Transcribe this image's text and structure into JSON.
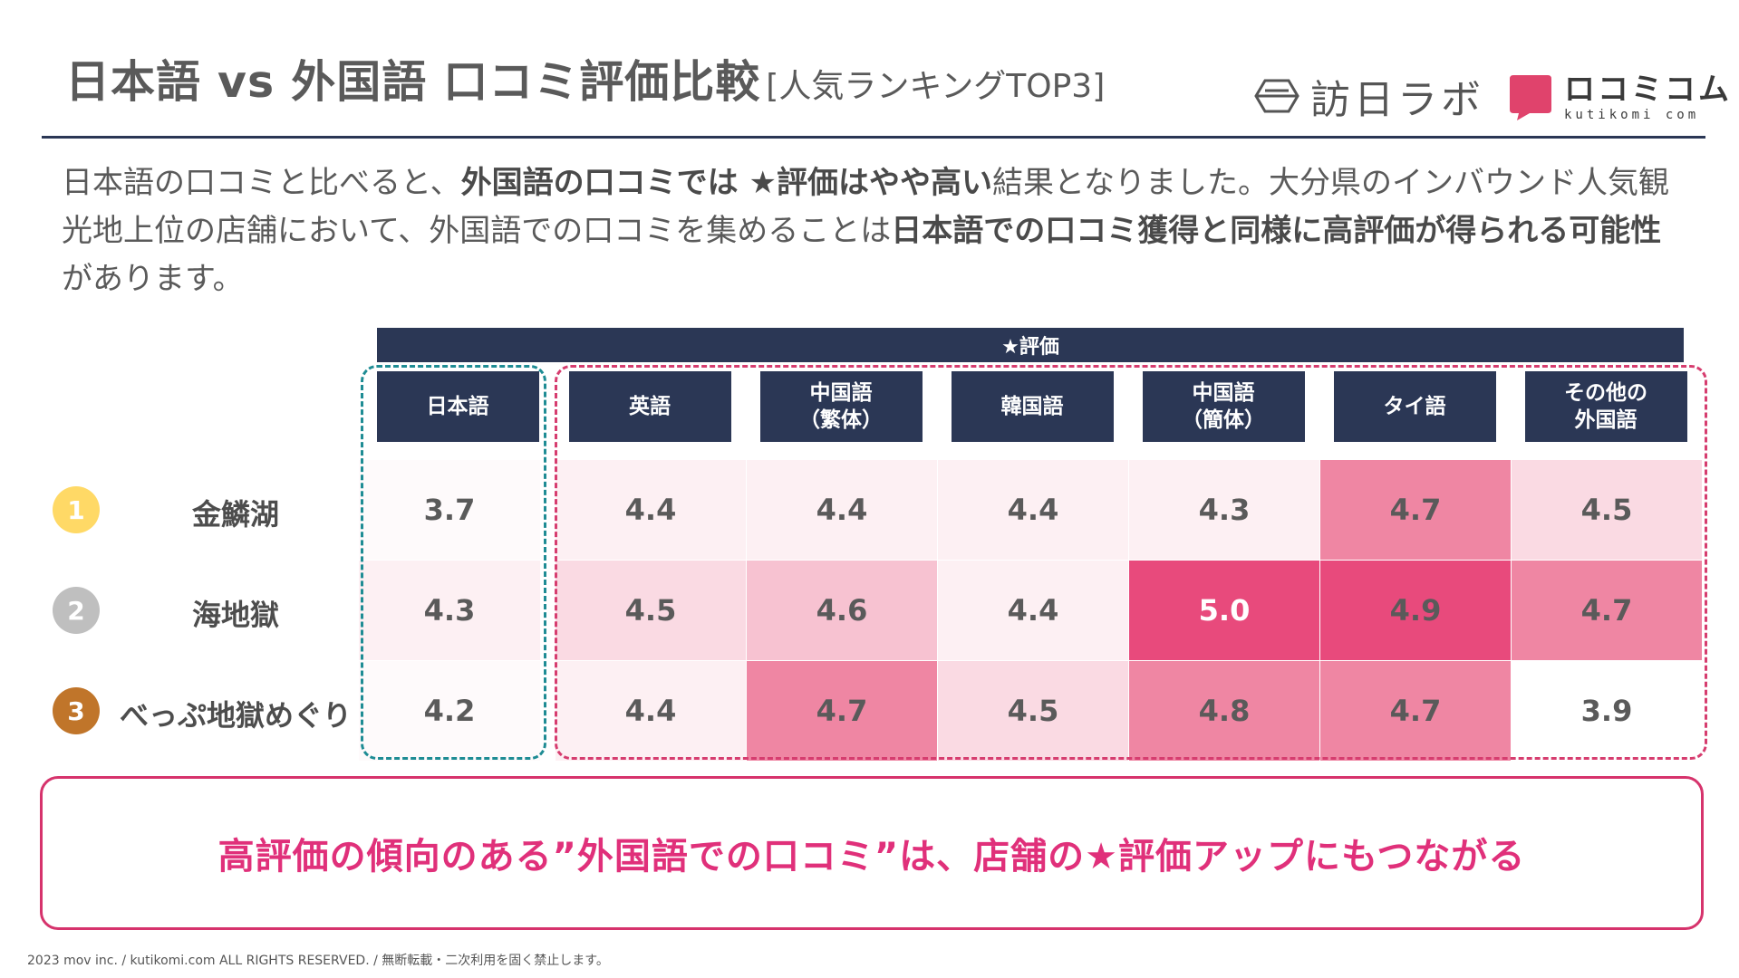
{
  "title": {
    "main": "日本語 vs 外国語 口コミ評価比較",
    "sub": "[人気ランキングTOP3]"
  },
  "logos": {
    "hojin": "訪日ラボ",
    "kuchikomi": "ロコミコム",
    "kuchikomi_domain": "kutikomi com"
  },
  "intro": [
    {
      "t": "日本語の口コミと比べると、",
      "b": false
    },
    {
      "t": "外国語の口コミでは ★評価はやや高い",
      "b": true
    },
    {
      "t": "結果となりました。大分県のインバウンド人気観光地上位の店舗において、外国語での口コミを集めることは",
      "b": false
    },
    {
      "t": "日本語での口コミ獲得と同様に高評価が得られる可能性",
      "b": true
    },
    {
      "t": "があります。",
      "b": false
    }
  ],
  "table": {
    "rating_header": "★評価",
    "columns": [
      "日本語",
      "英語",
      "中国語\n（繁体）",
      "韓国語",
      "中国語\n（簡体）",
      "タイ語",
      "その他の\n外国語"
    ],
    "rows": [
      {
        "rank": "1",
        "rank_color": "#ffd966",
        "name": "金鱗湖",
        "values": [
          "3.7",
          "4.4",
          "4.4",
          "4.4",
          "4.3",
          "4.7",
          "4.5"
        ]
      },
      {
        "rank": "2",
        "rank_color": "#bfbfbf",
        "name": "海地獄",
        "values": [
          "4.3",
          "4.5",
          "4.6",
          "4.4",
          "5.0",
          "4.9",
          "4.7"
        ]
      },
      {
        "rank": "3",
        "rank_color": "#c0752a",
        "name": "べっぷ地獄めぐり",
        "values": [
          "4.2",
          "4.4",
          "4.7",
          "4.5",
          "4.8",
          "4.7",
          "3.9"
        ]
      }
    ]
  },
  "callout": "高評価の傾向のある”外国語での口コミ”は、店舗の★評価アップにもつながる",
  "footer": "2023 mov inc. / kutikomi.com ALL RIGHTS RESERVED. / 無断転載・二次利用を固く禁止します。"
}
